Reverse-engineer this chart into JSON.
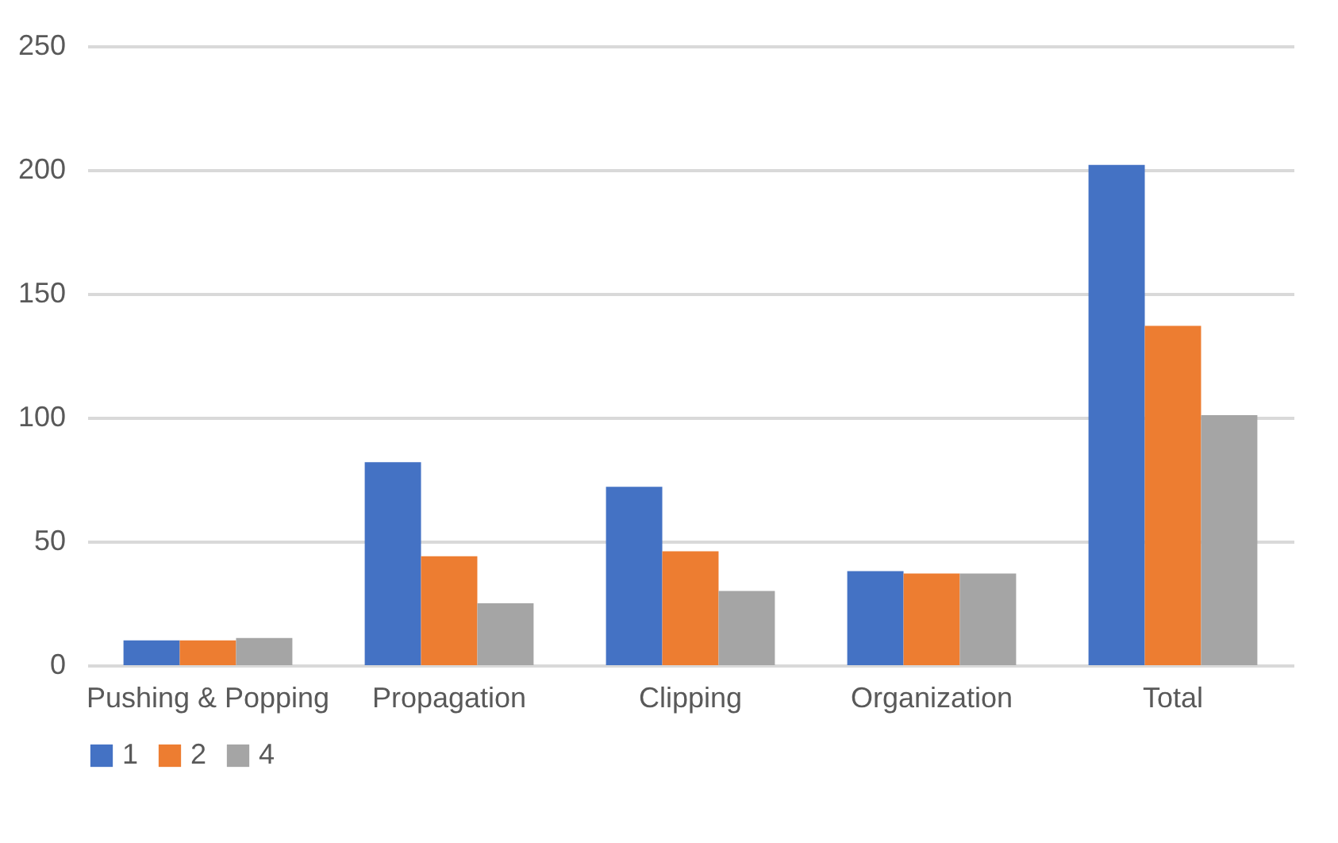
{
  "chart_data": {
    "type": "bar",
    "categories": [
      "Pushing & Popping",
      "Propagation",
      "Clipping",
      "Organization",
      "Total"
    ],
    "series": [
      {
        "name": "1",
        "color": "#4472c4",
        "values": [
          10,
          82,
          72,
          38,
          202
        ]
      },
      {
        "name": "2",
        "color": "#ed7d31",
        "values": [
          10,
          44,
          46,
          37,
          137
        ]
      },
      {
        "name": "4",
        "color": "#a5a5a5",
        "values": [
          11,
          25,
          30,
          37,
          101
        ]
      }
    ],
    "ylim": [
      0,
      250
    ],
    "yticks": [
      0,
      50,
      100,
      150,
      200,
      250
    ],
    "grid": "y",
    "legend": "bottom"
  }
}
